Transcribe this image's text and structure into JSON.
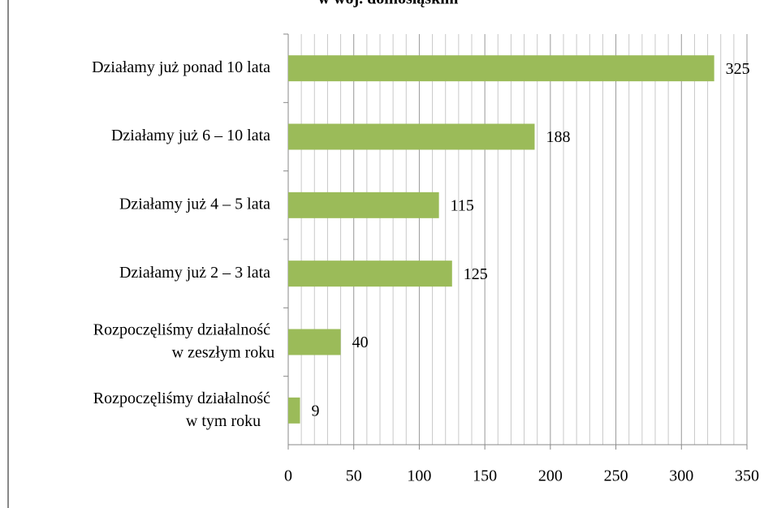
{
  "chart_data": {
    "type": "bar",
    "orientation": "horizontal",
    "title": "w woj. dolnośląskim",
    "categories": [
      "Działamy już ponad 10 lata",
      "Działamy już 6 – 10 lata",
      "Działamy już 4 – 5 lata",
      "Działamy już 2 – 3 lata",
      "Rozpoczęliśmy działalność\nw zeszłym roku",
      "Rozpoczęliśmy działalność\nw tym roku"
    ],
    "values": [
      325,
      188,
      115,
      125,
      40,
      9
    ],
    "color": "#9bbb59",
    "xlim": [
      0,
      350
    ],
    "xticks": [
      0,
      50,
      100,
      150,
      200,
      250,
      300,
      350
    ],
    "grid": true
  }
}
